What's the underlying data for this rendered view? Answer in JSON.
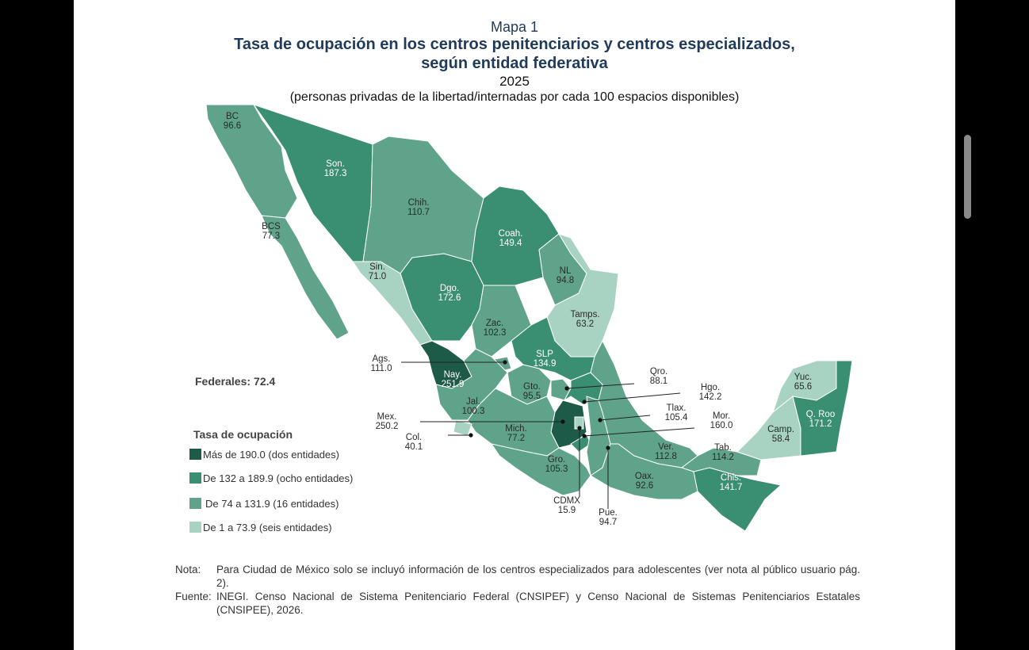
{
  "header": {
    "label": "Mapa 1",
    "title_line1": "Tasa de ocupación en los centros penitenciarios y centros especializados,",
    "title_line2": "según entidad federativa",
    "year": "2025",
    "subtitle": "(personas privadas de la libertad/internadas por cada 100 espacios disponibles)"
  },
  "states": [
    {
      "abbr": "BC",
      "value": "96.6",
      "color": "#5fa48a"
    },
    {
      "abbr": "Son.",
      "value": "187.3",
      "color": "#3a8f73"
    },
    {
      "abbr": "Chih.",
      "value": "110.7",
      "color": "#5fa48a"
    },
    {
      "abbr": "BCS",
      "value": "77.3",
      "color": "#5fa48a"
    },
    {
      "abbr": "Sin.",
      "value": "71.0",
      "color": "#a8d3c2"
    },
    {
      "abbr": "Dgo.",
      "value": "172.6",
      "color": "#3a8f73"
    },
    {
      "abbr": "Coah.",
      "value": "149.4",
      "color": "#3a8f73"
    },
    {
      "abbr": "NL",
      "value": "94.8",
      "color": "#5fa48a"
    },
    {
      "abbr": "Tamps.",
      "value": "63.2",
      "color": "#a8d3c2"
    },
    {
      "abbr": "Zac.",
      "value": "102.3",
      "color": "#5fa48a"
    },
    {
      "abbr": "SLP",
      "value": "134.9",
      "color": "#3a8f73"
    },
    {
      "abbr": "Ags.",
      "value": "111.0",
      "color": "#5fa48a"
    },
    {
      "abbr": "Nay.",
      "value": "251.9",
      "color": "#1e5a48"
    },
    {
      "abbr": "Jal.",
      "value": "100.3",
      "color": "#5fa48a"
    },
    {
      "abbr": "Gto.",
      "value": "95.5",
      "color": "#5fa48a"
    },
    {
      "abbr": "Qro.",
      "value": "88.1",
      "color": "#5fa48a"
    },
    {
      "abbr": "Hgo.",
      "value": "142.2",
      "color": "#3a8f73"
    },
    {
      "abbr": "Mex.",
      "value": "250.2",
      "color": "#1e5a48"
    },
    {
      "abbr": "CDMX",
      "value": "15.9",
      "color": "#a8d3c2"
    },
    {
      "abbr": "Tlax.",
      "value": "105.4",
      "color": "#5fa48a"
    },
    {
      "abbr": "Mor.",
      "value": "160.0",
      "color": "#3a8f73"
    },
    {
      "abbr": "Pue.",
      "value": "94.7",
      "color": "#5fa48a"
    },
    {
      "abbr": "Mich.",
      "value": "77.2",
      "color": "#5fa48a"
    },
    {
      "abbr": "Gro.",
      "value": "105.3",
      "color": "#5fa48a"
    },
    {
      "abbr": "Col.",
      "value": "40.1",
      "color": "#a8d3c2"
    },
    {
      "abbr": "Ver.",
      "value": "112.8",
      "color": "#5fa48a"
    },
    {
      "abbr": "Oax.",
      "value": "92.6",
      "color": "#5fa48a"
    },
    {
      "abbr": "Chis.",
      "value": "141.7",
      "color": "#3a8f73"
    },
    {
      "abbr": "Tab.",
      "value": "114.2",
      "color": "#5fa48a"
    },
    {
      "abbr": "Camp.",
      "value": "58.4",
      "color": "#a8d3c2"
    },
    {
      "abbr": "Yuc.",
      "value": "65.6",
      "color": "#a8d3c2"
    },
    {
      "abbr": "Q. Roo",
      "value": "171.2",
      "color": "#3a8f73"
    }
  ],
  "federales": {
    "label": "Federales:",
    "value": "72.4"
  },
  "legend": {
    "title": "Tasa de ocupación",
    "items": [
      {
        "label": "Más de 190.0 (dos entidades)",
        "color": "#1e5a48"
      },
      {
        "label": "De 132 a 189.9 (ocho entidades)",
        "color": "#3a8f73"
      },
      {
        "label": "De 74 a 131.9 (16 entidades)",
        "color": "#5fa48a"
      },
      {
        "label": "De 1 a 73.9 (seis entidades)",
        "color": "#a8d3c2"
      }
    ]
  },
  "note": {
    "label": "Nota:",
    "text": "Para Ciudad de México solo se incluyó información de los centros especializados para adolescentes (ver nota al público usuario pág. 2)."
  },
  "source": {
    "label": "Fuente:",
    "text": "INEGI. Censo Nacional de Sistema Penitenciario Federal (CNSIPEF) y Censo Nacional de Sistemas Penitenciarios Estatales (CNSIPEE), 2026."
  }
}
